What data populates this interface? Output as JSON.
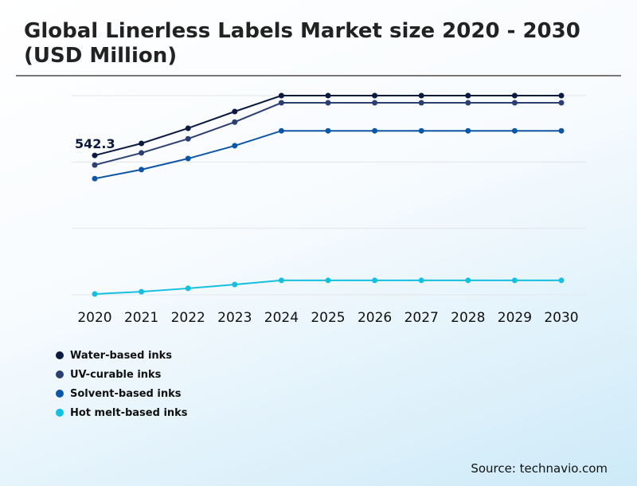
{
  "title": "Global Linerless Labels Market size 2020 - 2030 (USD Million)",
  "source": "Source: technavio.com",
  "chart_data": {
    "type": "line",
    "title": "Global Linerless Labels Market size 2020 - 2030 (USD Million)",
    "x": [
      "2020",
      "2021",
      "2022",
      "2023",
      "2024",
      "2025",
      "2026",
      "2027",
      "2028",
      "2029",
      "2030"
    ],
    "ylim": [
      0,
      775
    ],
    "grid": true,
    "legend": "bottom-left",
    "annotation": {
      "text": "542.3",
      "series": "Water-based inks",
      "x": "2020"
    },
    "series": [
      {
        "name": "Water-based inks",
        "color": "#0b1a3f",
        "values": [
          542.3,
          589,
          648,
          713,
          775,
          775,
          775,
          775,
          775,
          775,
          775
        ]
      },
      {
        "name": "UV-curable inks",
        "color": "#2c3f73",
        "values": [
          505,
          552,
          607,
          672,
          747,
          747,
          747,
          747,
          747,
          747,
          747
        ]
      },
      {
        "name": "Solvent-based inks",
        "color": "#0d56a6",
        "values": [
          452,
          487,
          530,
          580,
          638,
          638,
          638,
          638,
          638,
          638,
          638
        ]
      },
      {
        "name": "Hot melt-based inks",
        "color": "#14c0e0",
        "values": [
          3,
          12,
          25,
          40,
          56,
          56,
          56,
          56,
          56,
          56,
          56
        ]
      }
    ]
  }
}
